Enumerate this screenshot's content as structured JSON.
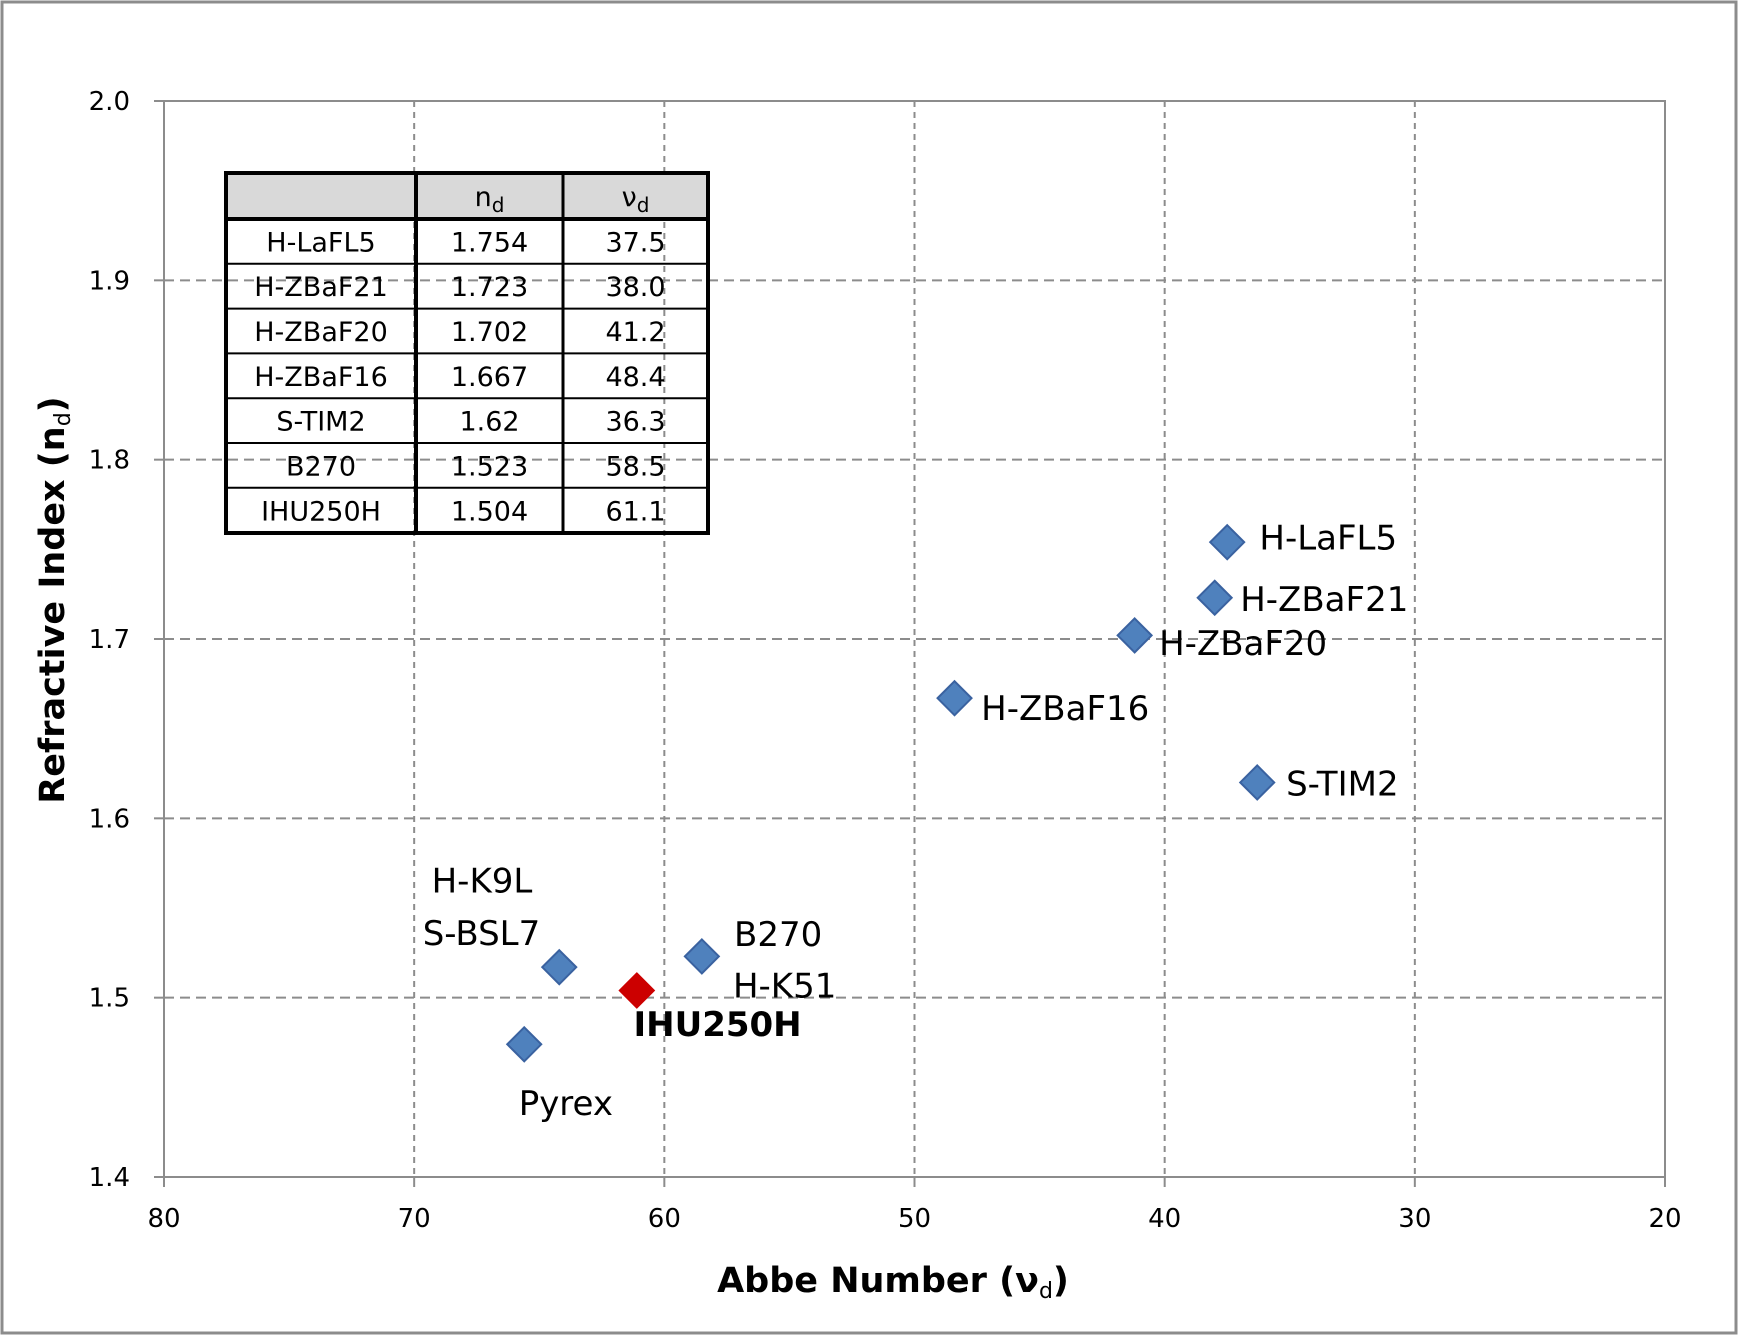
{
  "chart_data": {
    "type": "scatter",
    "title": "",
    "xlabel": "Abbe Number (ν",
    "xlabel_sub": "d",
    "ylabel": "Refractive Index (n",
    "ylabel_sub": "d",
    "xlim": [
      80,
      20
    ],
    "ylim": [
      1.4,
      2.0
    ],
    "x_reversed": true,
    "grid": true,
    "x_ticks": [
      "80",
      "70",
      "60",
      "50",
      "40",
      "30",
      "20"
    ],
    "y_ticks": [
      "1.4",
      "1.5",
      "1.6",
      "1.7",
      "1.8",
      "1.9",
      "2.0"
    ],
    "series_color": "#4f81bd",
    "highlight_color": "#cc0000",
    "points": [
      {
        "label": [
          "H-LaFL5"
        ],
        "x": 37.5,
        "y": 1.754,
        "highlight": false
      },
      {
        "label": [
          "H-ZBaF21"
        ],
        "x": 38.0,
        "y": 1.723,
        "highlight": false
      },
      {
        "label": [
          "H-ZBaF20"
        ],
        "x": 41.2,
        "y": 1.702,
        "highlight": false
      },
      {
        "label": [
          "H-ZBaF16"
        ],
        "x": 48.4,
        "y": 1.667,
        "highlight": false
      },
      {
        "label": [
          "S-TIM2"
        ],
        "x": 36.3,
        "y": 1.62,
        "highlight": false
      },
      {
        "label": [
          "B270",
          "H-K51"
        ],
        "x": 58.5,
        "y": 1.523,
        "highlight": false
      },
      {
        "label": [
          "H-K9L",
          "S-BSL7"
        ],
        "x": 64.2,
        "y": 1.517,
        "highlight": false
      },
      {
        "label": [
          "Pyrex"
        ],
        "x": 65.6,
        "y": 1.474,
        "highlight": false
      },
      {
        "label": [
          "IHU250H"
        ],
        "x": 61.1,
        "y": 1.504,
        "highlight": true
      }
    ],
    "table": {
      "headers": [
        "",
        "n",
        "ν"
      ],
      "header_sub": "d",
      "rows": [
        [
          "H-LaFL5",
          "1.754",
          "37.5"
        ],
        [
          "H-ZBaF21",
          "1.723",
          "38.0"
        ],
        [
          "H-ZBaF20",
          "1.702",
          "41.2"
        ],
        [
          "H-ZBaF16",
          "1.667",
          "48.4"
        ],
        [
          "S-TIM2",
          "1.62",
          "36.3"
        ],
        [
          "B270",
          "1.523",
          "58.5"
        ],
        [
          "IHU250H",
          "1.504",
          "61.1"
        ]
      ]
    }
  }
}
